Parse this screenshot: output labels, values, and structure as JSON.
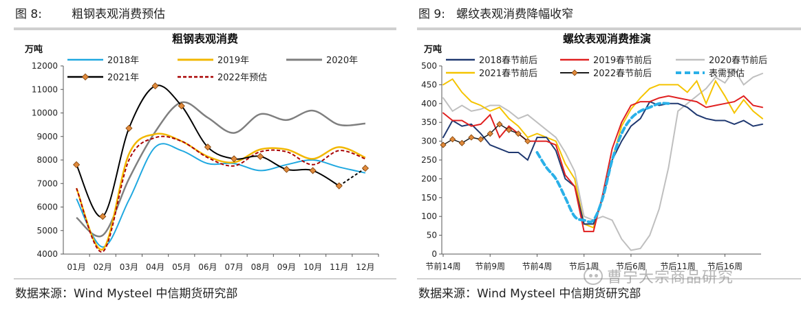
{
  "left": {
    "figure_title": "图 8:        粗钢表观消费预估",
    "source": "数据来源：Wind Mysteel  中信期货研究部"
  },
  "right": {
    "figure_title": "图 9:   螺纹表观消费降幅收窄",
    "source": "数据来源：Wind Mysteel 中信期货研究部"
  },
  "watermark": {
    "text": "曹宁大宗商品研究"
  },
  "colors": {
    "s2018": "#1fa8e0",
    "s2019": "#f2b700",
    "s2020": "#7f7f7f",
    "s2021": "#000000",
    "marker": "#e08a3c",
    "s2022": "#a80000",
    "r2018": "#1f3870",
    "r2019": "#e02020",
    "r2020": "#bfbfbf",
    "r2021": "#f5c400",
    "r2022": "#1a1a1a",
    "rdemand": "#2ab0e8"
  },
  "chart_data": [
    {
      "type": "line",
      "title": "粗钢表观消费",
      "ylabel": "万吨",
      "categories": [
        "01月",
        "02月",
        "03月",
        "04月",
        "05月",
        "06月",
        "07月",
        "08月",
        "09月",
        "10月",
        "11月",
        "12月"
      ],
      "ylim": [
        4000,
        12000
      ],
      "yticks": [
        4000,
        5000,
        6000,
        7000,
        8000,
        9000,
        10000,
        11000,
        12000
      ],
      "legend": "top",
      "series": [
        {
          "name": "2018年",
          "values": [
            6350,
            4300,
            6300,
            8550,
            8400,
            7850,
            7850,
            7550,
            7800,
            8000,
            7700,
            7450
          ]
        },
        {
          "name": "2019年",
          "values": [
            6800,
            4200,
            8250,
            9100,
            8800,
            8150,
            7900,
            8450,
            8450,
            8050,
            8550,
            8100
          ]
        },
        {
          "name": "2020年",
          "values": [
            5550,
            4800,
            7200,
            9200,
            10450,
            9800,
            9150,
            9950,
            9700,
            10100,
            9500,
            9550
          ]
        },
        {
          "name": "2021年",
          "values": [
            7800,
            5600,
            9350,
            11150,
            10300,
            8550,
            8050,
            8150,
            7600,
            7550,
            6900,
            7650
          ],
          "markers": true
        },
        {
          "name": "2022年预估",
          "values": [
            6800,
            4100,
            8000,
            8950,
            8800,
            8100,
            7750,
            8350,
            8350,
            7800,
            8400,
            8050
          ]
        }
      ]
    },
    {
      "type": "line",
      "title": "螺纹表观消费推演",
      "ylabel": "万吨",
      "x_tick_labels": [
        "节前14周",
        "节前9周",
        "节前4周",
        "节后1周",
        "节后6周",
        "节后11周",
        "节后16周"
      ],
      "ylim": [
        0,
        500
      ],
      "yticks": [
        0,
        50,
        100,
        150,
        200,
        250,
        300,
        350,
        400,
        450,
        500
      ],
      "legend": "top",
      "series": [
        {
          "name": "2018春节前后",
          "values": [
            310,
            355,
            340,
            345,
            320,
            290,
            280,
            270,
            270,
            250,
            310,
            310,
            275,
            200,
            180,
            80,
            80,
            150,
            250,
            300,
            340,
            360,
            405,
            395,
            400,
            400,
            390,
            370,
            360,
            355,
            355,
            345,
            355,
            340,
            345
          ]
        },
        {
          "name": "2019春节前后",
          "values": [
            375,
            355,
            355,
            340,
            345,
            370,
            310,
            340,
            320,
            300,
            300,
            300,
            290,
            210,
            180,
            60,
            60,
            160,
            280,
            350,
            395,
            405,
            405,
            415,
            420,
            415,
            410,
            405,
            390,
            395,
            400,
            405,
            420,
            395,
            390
          ]
        },
        {
          "name": "2020春节前后",
          "values": [
            415,
            380,
            395,
            380,
            385,
            395,
            395,
            380,
            360,
            370,
            350,
            330,
            310,
            270,
            220,
            100,
            90,
            100,
            90,
            40,
            10,
            15,
            50,
            120,
            230,
            380,
            400,
            420,
            440,
            470,
            455,
            490,
            450,
            470,
            480
          ]
        },
        {
          "name": "2021春节前后",
          "values": [
            450,
            465,
            430,
            405,
            395,
            380,
            390,
            360,
            340,
            310,
            320,
            310,
            300,
            240,
            200,
            80,
            70,
            150,
            250,
            340,
            385,
            415,
            440,
            450,
            450,
            450,
            430,
            460,
            400,
            460,
            420,
            375,
            410,
            380,
            360
          ]
        },
        {
          "name": "2022春节前后",
          "values": [
            290,
            305,
            295,
            310,
            305,
            320,
            345,
            330,
            320,
            300
          ],
          "markers": true
        },
        {
          "name": "表需预估",
          "values": [
            null,
            null,
            null,
            null,
            null,
            null,
            null,
            null,
            null,
            null,
            270,
            230,
            200,
            150,
            100,
            90,
            90,
            150,
            250,
            320,
            360,
            380,
            390,
            400,
            400,
            null,
            null,
            null,
            null,
            null,
            null,
            null,
            null,
            null,
            null
          ],
          "dashed": true
        }
      ]
    }
  ]
}
